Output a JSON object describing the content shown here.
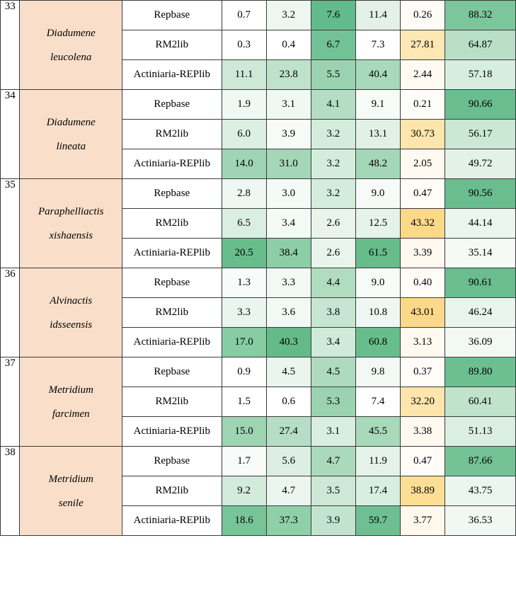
{
  "table": {
    "groups": [
      {
        "id": "33",
        "species_line1": "Diadumene",
        "species_line2": "leucolena",
        "rows": [
          {
            "lib": "Repbase",
            "values": [
              "0.7",
              "3.2",
              "7.6",
              "11.4",
              "0.26",
              "88.32"
            ],
            "bg": [
              "#ffffff",
              "#eef6f0",
              "#62bb8a",
              "#e3f1e8",
              "#fffcf8",
              "#7cc69b"
            ]
          },
          {
            "lib": "RM2lib",
            "values": [
              "0.3",
              "0.4",
              "6.7",
              "7.3",
              "27.81",
              "64.87"
            ],
            "bg": [
              "#ffffff",
              "#ffffff",
              "#72c296",
              "#ffffff",
              "#fde7b2",
              "#b9e0c7"
            ]
          },
          {
            "lib": "Actiniaria-REPlib",
            "values": [
              "11.1",
              "23.8",
              "5.5",
              "40.4",
              "2.44",
              "57.18"
            ],
            "bg": [
              "#cde8d6",
              "#bfe2cb",
              "#9bd3b1",
              "#a8d9ba",
              "#fffaf2",
              "#d7edde"
            ]
          }
        ]
      },
      {
        "id": "34",
        "species_line1": "Diadumene",
        "species_line2": "lineata",
        "rows": [
          {
            "lib": "Repbase",
            "values": [
              "1.9",
              "3.1",
              "4.1",
              "9.1",
              "0.21",
              "90.66"
            ],
            "bg": [
              "#f0f8f3",
              "#f0f8f3",
              "#b4ddc3",
              "#f6fbf8",
              "#fffdfa",
              "#6abd8e"
            ]
          },
          {
            "lib": "RM2lib",
            "values": [
              "6.0",
              "3.9",
              "3.2",
              "13.1",
              "30.73",
              "56.17"
            ],
            "bg": [
              "#dcefe3",
              "#f6fbf8",
              "#d4ecdc",
              "#e1f1e6",
              "#fde6ad",
              "#cbe8d4"
            ]
          },
          {
            "lib": "Actiniaria-REPlib",
            "values": [
              "14.0",
              "31.0",
              "3.2",
              "48.2",
              "2.05",
              "49.72"
            ],
            "bg": [
              "#9fd5b4",
              "#a4d7b7",
              "#d4ecdc",
              "#a4d7b7",
              "#fffaf1",
              "#e2f2e7"
            ]
          }
        ]
      },
      {
        "id": "35",
        "species_line1": "Paraphelliactis",
        "species_line2": "xishaensis",
        "rows": [
          {
            "lib": "Repbase",
            "values": [
              "2.8",
              "3.0",
              "3.2",
              "9.0",
              "0.47",
              "90.56"
            ],
            "bg": [
              "#eef7f2",
              "#f4faf6",
              "#d4ecdc",
              "#f6fbf8",
              "#fffcf8",
              "#6abd8e"
            ]
          },
          {
            "lib": "RM2lib",
            "values": [
              "6.5",
              "3.4",
              "2.6",
              "12.5",
              "43.32",
              "44.14"
            ],
            "bg": [
              "#dbeee2",
              "#f4faf6",
              "#e8f4ec",
              "#e6f3ea",
              "#fcd988",
              "#ebf6ef"
            ]
          },
          {
            "lib": "Actiniaria-REPlib",
            "values": [
              "20.5",
              "38.4",
              "2.6",
              "61.5",
              "3.39",
              "35.14"
            ],
            "bg": [
              "#68bd8c",
              "#8ccfa6",
              "#e8f4ec",
              "#66bc8b",
              "#fff9ef",
              "#f5faf7"
            ]
          }
        ]
      },
      {
        "id": "36",
        "species_line1": "Alvinactis",
        "species_line2": "idsseensis",
        "rows": [
          {
            "lib": "Repbase",
            "values": [
              "1.3",
              "3.3",
              "4.4",
              "9.0",
              "0.40",
              "90.61"
            ],
            "bg": [
              "#f7fbf9",
              "#f2f9f4",
              "#b0dcc0",
              "#f6fbf8",
              "#fffcf8",
              "#6abd8e"
            ]
          },
          {
            "lib": "RM2lib",
            "values": [
              "3.3",
              "3.6",
              "3.8",
              "10.8",
              "43.01",
              "46.24"
            ],
            "bg": [
              "#eaf5ee",
              "#f2f9f4",
              "#c6e6d1",
              "#eef7f2",
              "#fcd98a",
              "#e8f4ec"
            ]
          },
          {
            "lib": "Actiniaria-REPlib",
            "values": [
              "17.0",
              "40.3",
              "3.4",
              "60.8",
              "3.13",
              "36.09"
            ],
            "bg": [
              "#87cca2",
              "#64bb89",
              "#d0eada",
              "#68bd8c",
              "#fff9f0",
              "#f2f9f4"
            ]
          }
        ]
      },
      {
        "id": "37",
        "species_line1": "Metridium",
        "species_line2": "farcimen",
        "rows": [
          {
            "lib": "Repbase",
            "values": [
              "0.9",
              "4.5",
              "4.5",
              "9.8",
              "0.37",
              "89.80"
            ],
            "bg": [
              "#ffffff",
              "#eaf5ee",
              "#aedbbe",
              "#f2f9f4",
              "#fffcf8",
              "#6cbf90"
            ]
          },
          {
            "lib": "RM2lib",
            "values": [
              "1.5",
              "0.6",
              "5.3",
              "7.4",
              "32.20",
              "60.41"
            ],
            "bg": [
              "#ffffff",
              "#ffffff",
              "#9bd3b1",
              "#ffffff",
              "#fde5ab",
              "#c0e3cc"
            ]
          },
          {
            "lib": "Actiniaria-REPlib",
            "values": [
              "15.0",
              "27.4",
              "3.1",
              "45.5",
              "3.38",
              "51.13"
            ],
            "bg": [
              "#9dd4b2",
              "#b6ddc5",
              "#d8eee0",
              "#a9d9bb",
              "#fff9ef",
              "#dbeee2"
            ]
          }
        ]
      },
      {
        "id": "38",
        "species_line1": "Metridium",
        "species_line2": "senile",
        "rows": [
          {
            "lib": "Repbase",
            "values": [
              "1.7",
              "5.6",
              "4.7",
              "11.9",
              "0.47",
              "87.66"
            ],
            "bg": [
              "#f7fbf9",
              "#ddefe4",
              "#aad9bc",
              "#e4f2e9",
              "#fffcf8",
              "#74c296"
            ]
          },
          {
            "lib": "RM2lib",
            "values": [
              "9.2",
              "4.7",
              "3.5",
              "17.4",
              "38.89",
              "43.75"
            ],
            "bg": [
              "#d3ebdb",
              "#ebf6ef",
              "#cde8d6",
              "#d8eee0",
              "#fdde95",
              "#ecf6f0"
            ]
          },
          {
            "lib": "Actiniaria-REPlib",
            "values": [
              "18.6",
              "37.3",
              "3.9",
              "59.7",
              "3.77",
              "36.53"
            ],
            "bg": [
              "#78c499",
              "#8fd0a8",
              "#c2e4ce",
              "#6ec093",
              "#fff8ec",
              "#f1f8f3"
            ]
          }
        ]
      }
    ]
  }
}
